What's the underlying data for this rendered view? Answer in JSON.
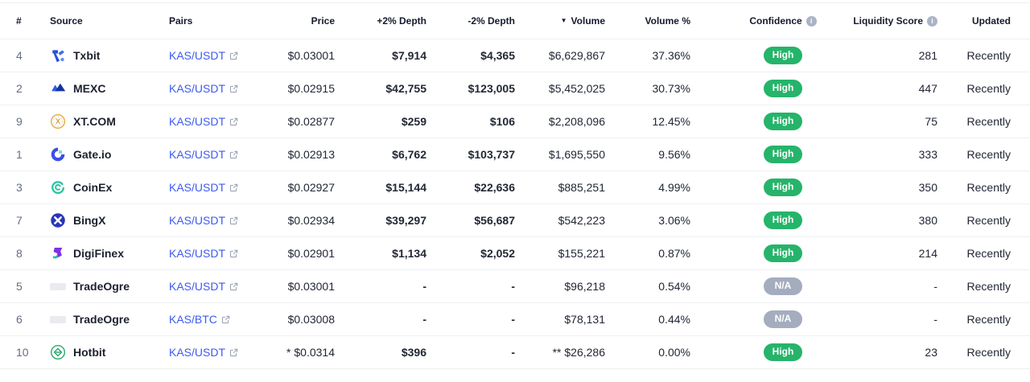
{
  "header": {
    "rank": "#",
    "source": "Source",
    "pairs": "Pairs",
    "price": "Price",
    "plus_depth": "+2% Depth",
    "minus_depth": "-2% Depth",
    "volume": "Volume",
    "volume_pct": "Volume %",
    "confidence": "Confidence",
    "liquidity": "Liquidity Score",
    "updated": "Updated",
    "volume_sort": "desc"
  },
  "colors": {
    "badge_high": "#25b46a",
    "badge_na": "#a4adbe",
    "link": "#3d5af1"
  },
  "rows": [
    {
      "rank": "4",
      "source": "Txbit",
      "logo": "txbit",
      "pair": "KAS/USDT",
      "price": "$0.03001",
      "plus_depth": "$7,914",
      "minus_depth": "$4,365",
      "volume": "$6,629,867",
      "volume_pct": "37.36%",
      "confidence": "High",
      "confidence_type": "high",
      "liquidity": "281",
      "updated": "Recently"
    },
    {
      "rank": "2",
      "source": "MEXC",
      "logo": "mexc",
      "pair": "KAS/USDT",
      "price": "$0.02915",
      "plus_depth": "$42,755",
      "minus_depth": "$123,005",
      "volume": "$5,452,025",
      "volume_pct": "30.73%",
      "confidence": "High",
      "confidence_type": "high",
      "liquidity": "447",
      "updated": "Recently"
    },
    {
      "rank": "9",
      "source": "XT.COM",
      "logo": "xt",
      "pair": "KAS/USDT",
      "price": "$0.02877",
      "plus_depth": "$259",
      "minus_depth": "$106",
      "volume": "$2,208,096",
      "volume_pct": "12.45%",
      "confidence": "High",
      "confidence_type": "high",
      "liquidity": "75",
      "updated": "Recently"
    },
    {
      "rank": "1",
      "source": "Gate.io",
      "logo": "gateio",
      "pair": "KAS/USDT",
      "price": "$0.02913",
      "plus_depth": "$6,762",
      "minus_depth": "$103,737",
      "volume": "$1,695,550",
      "volume_pct": "9.56%",
      "confidence": "High",
      "confidence_type": "high",
      "liquidity": "333",
      "updated": "Recently"
    },
    {
      "rank": "3",
      "source": "CoinEx",
      "logo": "coinex",
      "pair": "KAS/USDT",
      "price": "$0.02927",
      "plus_depth": "$15,144",
      "minus_depth": "$22,636",
      "volume": "$885,251",
      "volume_pct": "4.99%",
      "confidence": "High",
      "confidence_type": "high",
      "liquidity": "350",
      "updated": "Recently"
    },
    {
      "rank": "7",
      "source": "BingX",
      "logo": "bingx",
      "pair": "KAS/USDT",
      "price": "$0.02934",
      "plus_depth": "$39,297",
      "minus_depth": "$56,687",
      "volume": "$542,223",
      "volume_pct": "3.06%",
      "confidence": "High",
      "confidence_type": "high",
      "liquidity": "380",
      "updated": "Recently"
    },
    {
      "rank": "8",
      "source": "DigiFinex",
      "logo": "digifinex",
      "pair": "KAS/USDT",
      "price": "$0.02901",
      "plus_depth": "$1,134",
      "minus_depth": "$2,052",
      "volume": "$155,221",
      "volume_pct": "0.87%",
      "confidence": "High",
      "confidence_type": "high",
      "liquidity": "214",
      "updated": "Recently"
    },
    {
      "rank": "5",
      "source": "TradeOgre",
      "logo": "tradeogre",
      "pair": "KAS/USDT",
      "price": "$0.03001",
      "plus_depth": "-",
      "minus_depth": "-",
      "volume": "$96,218",
      "volume_pct": "0.54%",
      "confidence": "N/A",
      "confidence_type": "na",
      "liquidity": "-",
      "updated": "Recently"
    },
    {
      "rank": "6",
      "source": "TradeOgre",
      "logo": "tradeogre",
      "pair": "KAS/BTC",
      "price": "$0.03008",
      "plus_depth": "-",
      "minus_depth": "-",
      "volume": "$78,131",
      "volume_pct": "0.44%",
      "confidence": "N/A",
      "confidence_type": "na",
      "liquidity": "-",
      "updated": "Recently"
    },
    {
      "rank": "10",
      "source": "Hotbit",
      "logo": "hotbit",
      "pair": "KAS/USDT",
      "price": "* $0.0314",
      "plus_depth": "$396",
      "minus_depth": "-",
      "volume": "** $26,286",
      "volume_pct": "0.00%",
      "confidence": "High",
      "confidence_type": "high",
      "liquidity": "23",
      "updated": "Recently"
    }
  ]
}
